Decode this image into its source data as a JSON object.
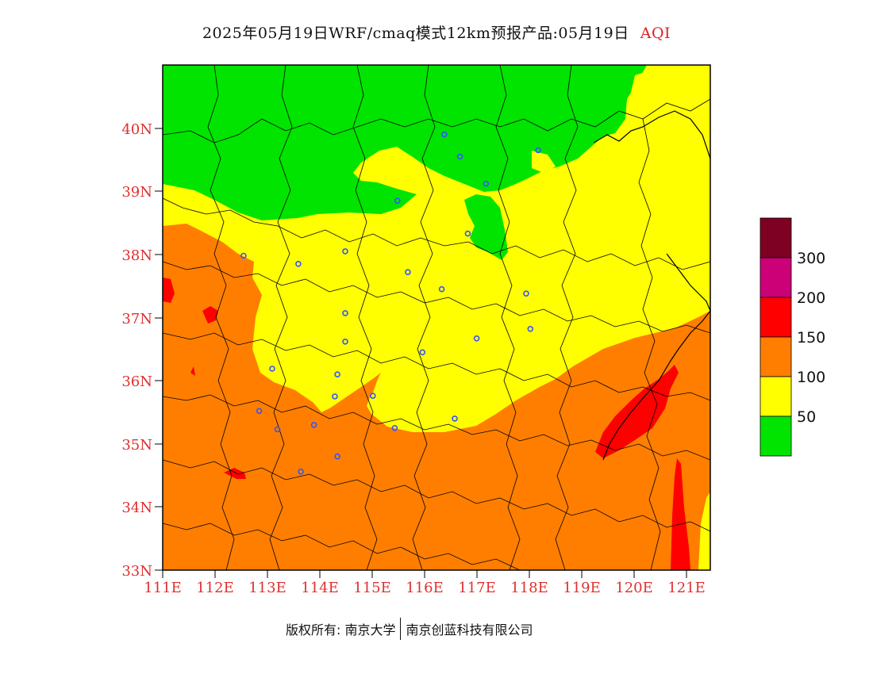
{
  "title": {
    "text": "2025年05月19日WRF/cmaq模式12km预报产品:05月19日",
    "variable": "AQI"
  },
  "map": {
    "lon_range": [
      111,
      121.5
    ],
    "lat_range": [
      33,
      41
    ],
    "lat_ticks": [
      "33N",
      "34N",
      "35N",
      "36N",
      "37N",
      "38N",
      "39N",
      "40N"
    ],
    "lon_ticks": [
      "111E",
      "112E",
      "113E",
      "114E",
      "115E",
      "116E",
      "117E",
      "118E",
      "119E",
      "120E",
      "121E"
    ],
    "colors": {
      "good": "#00e400",
      "moderate": "#ffff00",
      "sensitive": "#ff7e00",
      "unhealthy": "#ff0000",
      "very_unhealthy": "#cc0077",
      "hazardous": "#7e0023",
      "station": "#3355ff",
      "boundary": "#000000",
      "axis_text": "#e03030"
    },
    "stations": [
      {
        "lon": 116.4,
        "lat": 39.9
      },
      {
        "lon": 116.7,
        "lat": 39.55
      },
      {
        "lon": 118.2,
        "lat": 39.65
      },
      {
        "lon": 117.2,
        "lat": 39.12
      },
      {
        "lon": 115.5,
        "lat": 38.85
      },
      {
        "lon": 116.85,
        "lat": 38.33
      },
      {
        "lon": 112.55,
        "lat": 37.98
      },
      {
        "lon": 113.6,
        "lat": 37.85
      },
      {
        "lon": 114.5,
        "lat": 38.05
      },
      {
        "lon": 115.7,
        "lat": 37.72
      },
      {
        "lon": 116.35,
        "lat": 37.45
      },
      {
        "lon": 117.97,
        "lat": 37.38
      },
      {
        "lon": 114.5,
        "lat": 37.07
      },
      {
        "lon": 118.05,
        "lat": 36.82
      },
      {
        "lon": 117.02,
        "lat": 36.67
      },
      {
        "lon": 114.5,
        "lat": 36.62
      },
      {
        "lon": 115.98,
        "lat": 36.45
      },
      {
        "lon": 113.1,
        "lat": 36.19
      },
      {
        "lon": 114.35,
        "lat": 36.1
      },
      {
        "lon": 114.3,
        "lat": 35.75
      },
      {
        "lon": 115.03,
        "lat": 35.76
      },
      {
        "lon": 112.85,
        "lat": 35.52
      },
      {
        "lon": 116.6,
        "lat": 35.4
      },
      {
        "lon": 113.2,
        "lat": 35.23
      },
      {
        "lon": 113.9,
        "lat": 35.3
      },
      {
        "lon": 115.45,
        "lat": 35.25
      },
      {
        "lon": 114.35,
        "lat": 34.8
      },
      {
        "lon": 113.65,
        "lat": 34.56
      }
    ]
  },
  "legend": {
    "colors": [
      "#7e0023",
      "#cc0077",
      "#ff0000",
      "#ff7e00",
      "#ffff00",
      "#00e400"
    ],
    "labels": [
      "300",
      "200",
      "150",
      "100",
      "50"
    ]
  },
  "footer": {
    "left": "版权所有: 南京大学",
    "right": "南京创蓝科技有限公司"
  }
}
